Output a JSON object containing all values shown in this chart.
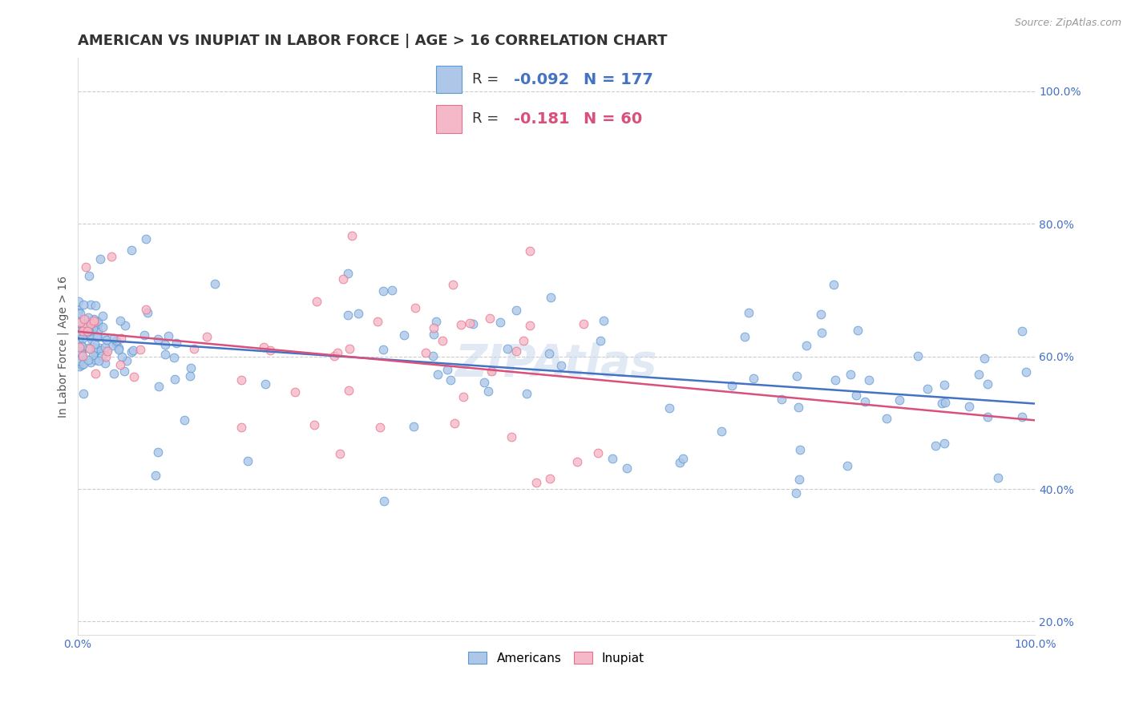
{
  "title": "AMERICAN VS INUPIAT IN LABOR FORCE | AGE > 16 CORRELATION CHART",
  "source_text": "Source: ZipAtlas.com",
  "ylabel": "In Labor Force | Age > 16",
  "xlim": [
    0.0,
    1.0
  ],
  "ylim": [
    0.18,
    1.05
  ],
  "x_ticks": [
    0.0,
    0.2,
    0.4,
    0.6,
    0.8,
    1.0
  ],
  "x_tick_labels": [
    "0.0%",
    "",
    "",
    "",
    "",
    "100.0%"
  ],
  "y_ticks": [
    0.2,
    0.4,
    0.6,
    0.8,
    1.0
  ],
  "y_tick_labels": [
    "20.0%",
    "40.0%",
    "60.0%",
    "80.0%",
    "100.0%"
  ],
  "americans_color": "#aec6e8",
  "inupiat_color": "#f4b8c8",
  "americans_edge_color": "#5b9bd5",
  "inupiat_edge_color": "#e8708a",
  "americans_line_color": "#4472c4",
  "inupiat_line_color": "#d9507a",
  "legend_R_color": "#4472c4",
  "legend_R_inupiat_color": "#d9507a",
  "legend_R_americans": "-0.092",
  "legend_N_americans": "177",
  "legend_R_inupiat": "-0.181",
  "legend_N_inupiat": "60",
  "watermark": "ZIPAtlas",
  "background_color": "#ffffff",
  "grid_color": "#cccccc",
  "title_color": "#333333",
  "axis_label_color": "#555555",
  "tick_label_color": "#4472c4",
  "source_color": "#999999",
  "americans_n": 177,
  "inupiat_n": 60,
  "americans_R": -0.092,
  "inupiat_R": -0.181,
  "marker_size": 60,
  "line_width": 1.8,
  "title_fontsize": 13,
  "label_fontsize": 10,
  "tick_fontsize": 10,
  "legend_fontsize": 13,
  "watermark_fontsize": 40,
  "watermark_color": "#c8d8ec",
  "watermark_alpha": 0.55
}
